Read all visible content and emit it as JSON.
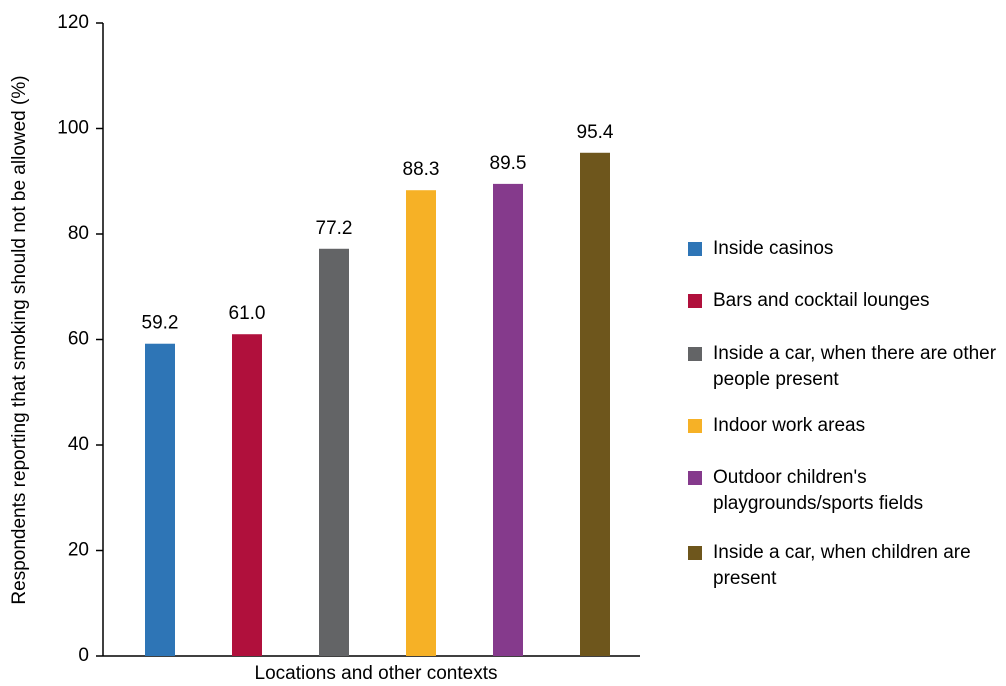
{
  "chart_data": {
    "type": "bar",
    "y_label": "Respondents reporting that smoking should not be allowed (%)",
    "x_label": "Locations and other contexts",
    "series": [
      {
        "name": "Inside casinos",
        "color": "#2e75b6",
        "values": [
          59.2
        ]
      },
      {
        "name": "Bars and cocktail lounges",
        "color": "#b0103c",
        "values": [
          61.0
        ],
        "value_labels": [
          "61.0"
        ]
      },
      {
        "name": "Inside a car, when there are other people present",
        "color": "#636466",
        "values": [
          77.2
        ]
      },
      {
        "name": "Indoor work areas",
        "color": "#f6b126",
        "values": [
          88.3
        ]
      },
      {
        "name": "Outdoor children's playgrounds/sports fields",
        "color": "#853a8c",
        "values": [
          89.5
        ]
      },
      {
        "name": "Inside a car, when children are present",
        "color": "#6e561c",
        "values": [
          95.4
        ]
      }
    ],
    "ylim": [
      0,
      120
    ],
    "yticks": [
      0,
      20,
      40,
      60,
      80,
      100,
      120
    ],
    "grid": false,
    "legend": "right"
  }
}
